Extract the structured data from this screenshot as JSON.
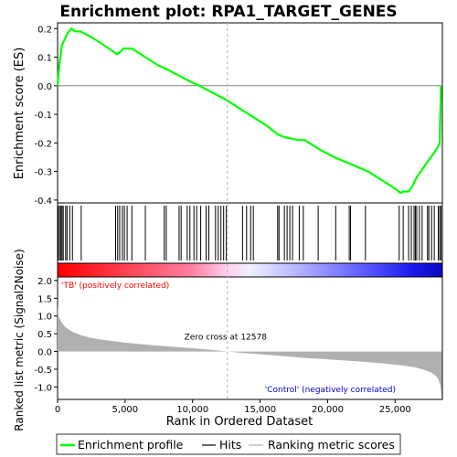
{
  "chart_data": [
    {
      "type": "line",
      "title": "Enrichment plot: RPA1_TARGET_GENES",
      "ylabel": "Enrichment score (ES)",
      "xlim": [
        0,
        28500
      ],
      "ylim": [
        -0.41,
        0.22
      ],
      "yticks": [
        0.2,
        0.1,
        0.0,
        -0.1,
        -0.2,
        -0.3,
        -0.4
      ],
      "ytick_labels": [
        "0.2",
        "0.1",
        "0.0",
        "-0.1",
        "-0.2",
        "-0.3",
        "-0.4"
      ],
      "series": [
        {
          "name": "Enrichment profile",
          "color": "#00ff00",
          "x": [
            0,
            100,
            200,
            320,
            500,
            700,
            1000,
            1300,
            1700,
            2500,
            3500,
            4400,
            4700,
            4850,
            5100,
            5500,
            6500,
            7500,
            8000,
            9000,
            9800,
            10500,
            11500,
            12500,
            13500,
            14500,
            15500,
            16300,
            16800,
            17300,
            17800,
            18300,
            19300,
            20500,
            21500,
            22000,
            23000,
            24000,
            25000,
            25400,
            25600,
            26000,
            26300,
            26600,
            26900,
            27200,
            27500,
            27800,
            28100,
            28300,
            28400
          ],
          "y": [
            0.0,
            0.06,
            0.1,
            0.14,
            0.16,
            0.18,
            0.2,
            0.19,
            0.19,
            0.17,
            0.14,
            0.11,
            0.12,
            0.13,
            0.13,
            0.13,
            0.1,
            0.07,
            0.06,
            0.035,
            0.015,
            0.0,
            -0.025,
            -0.05,
            -0.08,
            -0.11,
            -0.14,
            -0.17,
            -0.18,
            -0.185,
            -0.19,
            -0.19,
            -0.22,
            -0.25,
            -0.27,
            -0.28,
            -0.3,
            -0.33,
            -0.36,
            -0.375,
            -0.37,
            -0.37,
            -0.35,
            -0.32,
            -0.3,
            -0.28,
            -0.26,
            -0.24,
            -0.22,
            -0.2,
            0.0
          ]
        }
      ],
      "hit_positions": [
        50,
        150,
        250,
        330,
        420,
        600,
        700,
        900,
        1100,
        1750,
        4300,
        4450,
        4600,
        4800,
        4950,
        5150,
        5500,
        6500,
        7900,
        8050,
        9000,
        9150,
        9600,
        9800,
        10100,
        10300,
        10600,
        11000,
        11200,
        11700,
        11900,
        12100,
        12300,
        12500,
        13700,
        14000,
        14300,
        14500,
        16300,
        16400,
        16800,
        17000,
        17200,
        17400,
        17900,
        18200,
        19300,
        20600,
        21600,
        21700,
        22800,
        25300,
        25600,
        26000,
        26200,
        26400,
        26500,
        26600,
        26800,
        27000,
        27400,
        27500,
        27700,
        27900,
        28200,
        28300,
        28400
      ],
      "colorbar_stops": [
        {
          "offset": 0.0,
          "color": "#ff0000"
        },
        {
          "offset": 0.35,
          "color": "#ff80a0"
        },
        {
          "offset": 0.44,
          "color": "#ffd0f0"
        },
        {
          "offset": 0.5,
          "color": "#f0f0ff"
        },
        {
          "offset": 0.6,
          "color": "#c0c0ff"
        },
        {
          "offset": 0.8,
          "color": "#5a5aff"
        },
        {
          "offset": 0.92,
          "color": "#1a1aee"
        },
        {
          "offset": 1.0,
          "color": "#0a0ac0"
        }
      ]
    },
    {
      "type": "area",
      "xlabel": "Rank in Ordered Dataset",
      "ylabel": "Ranked list metric (Signal2Noise)",
      "xlim": [
        0,
        28500
      ],
      "ylim": [
        -1.35,
        2.1
      ],
      "xticks": [
        0,
        5000,
        10000,
        15000,
        20000,
        25000
      ],
      "xtick_labels": [
        "0",
        "5,000",
        "10,000",
        "15,000",
        "20,000",
        "25,000"
      ],
      "yticks": [
        2.0,
        1.5,
        1.0,
        0.5,
        0.0,
        -0.5,
        -1.0
      ],
      "ytick_labels": [
        "2.0",
        "1.5",
        "1.0",
        "0.5",
        "0.0",
        "-0.5",
        "-1.0"
      ],
      "x": [
        0,
        50,
        150,
        300,
        500,
        800,
        1200,
        1800,
        2500,
        3500,
        5000,
        7000,
        9000,
        11000,
        12578,
        14000,
        16000,
        18000,
        20000,
        22000,
        24000,
        25500,
        26500,
        27200,
        27700,
        28000,
        28200,
        28350,
        28450
      ],
      "values": [
        1.3,
        1.05,
        0.92,
        0.82,
        0.72,
        0.62,
        0.54,
        0.45,
        0.38,
        0.32,
        0.25,
        0.18,
        0.12,
        0.06,
        0.0,
        -0.05,
        -0.11,
        -0.17,
        -0.22,
        -0.27,
        -0.33,
        -0.39,
        -0.45,
        -0.52,
        -0.6,
        -0.68,
        -0.78,
        -0.95,
        -1.3
      ],
      "fill_color": "#b0b0b0",
      "zero_cross_label": "Zero cross at 12578",
      "zero_cross_x": 12578,
      "positive_label": "'TB' (positively correlated)",
      "negative_label": "'Control' (negatively correlated)",
      "positive_color": "#ff0000",
      "negative_color": "#0000cc"
    }
  ],
  "legend": {
    "placement": "bottom",
    "items": [
      {
        "label": "Enrichment profile",
        "color": "#00ff00",
        "kind": "thick-line"
      },
      {
        "label": "Hits",
        "color": "#000000",
        "kind": "line"
      },
      {
        "label": "Ranking metric scores",
        "color": "#b0b0b0",
        "kind": "line"
      }
    ]
  }
}
